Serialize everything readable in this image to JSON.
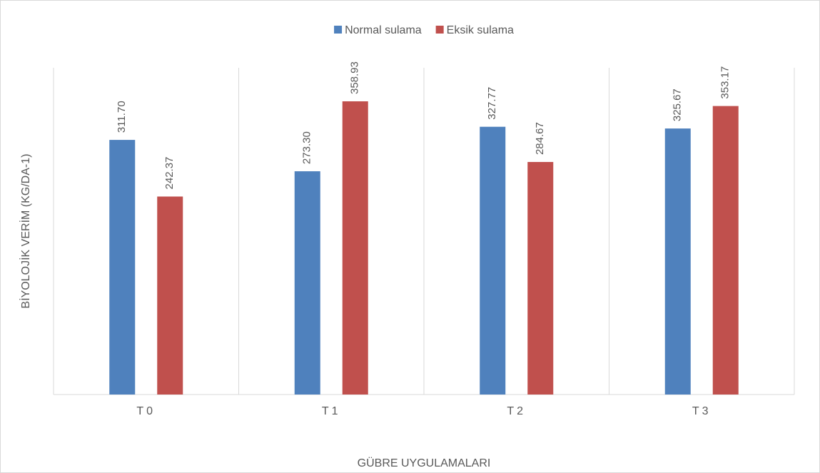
{
  "chart_data": {
    "type": "bar",
    "xlabel": "GÜBRE UYGULAMALARI",
    "ylabel": "BİYOLOJİK VERİM (KG/DA-1)",
    "categories": [
      "T0",
      "T1",
      "T2",
      "T3"
    ],
    "series": [
      {
        "name": "Normal sulama",
        "color": "#4f81bd",
        "values": [
          311.7,
          273.3,
          327.77,
          325.67
        ],
        "value_labels": [
          "311.70",
          "273.30",
          "327.77",
          "325.67"
        ]
      },
      {
        "name": "Eksik sulama",
        "color": "#c0504d",
        "values": [
          242.37,
          358.93,
          284.67,
          353.17
        ],
        "value_labels": [
          "242.37",
          "358.93",
          "284.67",
          "353.17"
        ]
      }
    ],
    "ylim": [
      0,
      400
    ],
    "legend": "top"
  }
}
